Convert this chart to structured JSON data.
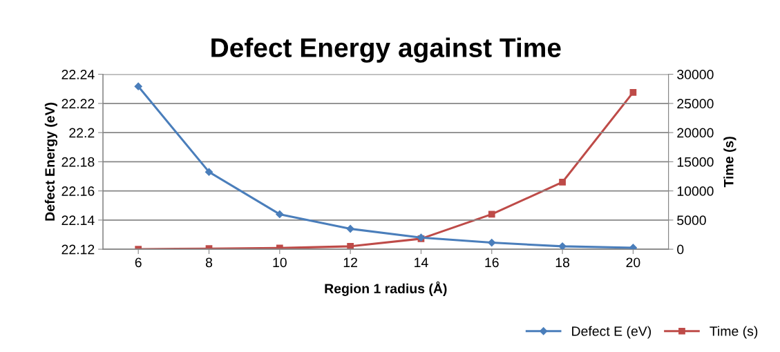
{
  "chart_data": {
    "type": "line",
    "title": "Defect Energy against Time",
    "xlabel": "Region 1 radius (Å)",
    "ylabel": "Defect Energy (eV)",
    "y2label": "Time (s)",
    "categories": [
      "6",
      "8",
      "10",
      "12",
      "14",
      "16",
      "18",
      "20"
    ],
    "series": [
      {
        "name": "Defect E (eV)",
        "color": "#4a7ebb",
        "marker": "diamond",
        "values": [
          22.2317,
          22.173,
          22.144,
          22.134,
          22.128,
          22.1245,
          22.122,
          22.121
        ]
      },
      {
        "name": "Time (s)",
        "color": "#be4b48",
        "marker": "square",
        "axis": "y2",
        "values": [
          0,
          100,
          200,
          500,
          1800,
          6000,
          11500,
          26900
        ]
      }
    ],
    "ylim": [
      22.12,
      22.24
    ],
    "yticks": [
      22.12,
      22.14,
      22.16,
      22.18,
      22.2,
      22.22,
      22.24
    ],
    "y2lim": [
      0,
      30000
    ],
    "y2ticks": [
      0,
      5000,
      10000,
      15000,
      20000,
      25000,
      30000
    ],
    "grid": "y",
    "legend": "bottom right",
    "line_style": "solid"
  }
}
